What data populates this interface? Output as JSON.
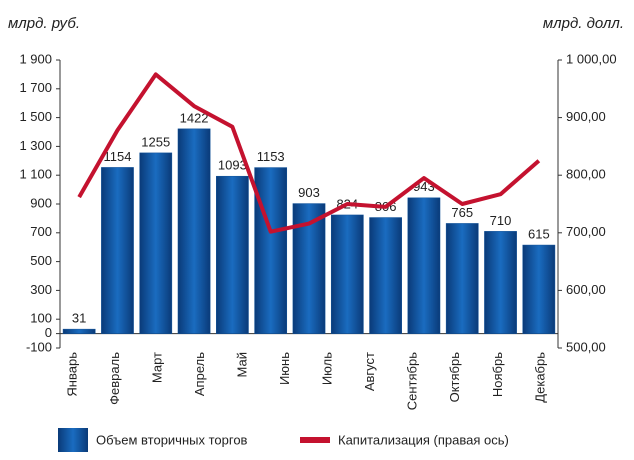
{
  "chart_data": {
    "type": "bar_line",
    "left_unit": "млрд. руб.",
    "right_unit": "млрд. долл.",
    "categories": [
      "Январь",
      "Февраль",
      "Март",
      "Апрель",
      "Май",
      "Июнь",
      null,
      "Июль",
      "Август",
      "Сентябрь",
      "Октябрь",
      "Ноябрь",
      "Декабрь"
    ],
    "series": [
      {
        "name": "Объем вторичных торгов",
        "type": "bar",
        "color": "#0d4f97",
        "values": [
          31,
          1154,
          1255,
          1422,
          1093,
          1153,
          903,
          824,
          806,
          943,
          765,
          710,
          615
        ]
      },
      {
        "name": "Капитализация (правая ось)",
        "type": "line",
        "axis": "y2",
        "color": "#c4122f",
        "values": [
          762,
          878,
          975,
          920,
          884,
          702,
          716,
          750,
          745,
          795,
          750,
          767,
          825
        ]
      }
    ],
    "ylim": [
      -100,
      1900
    ],
    "yticks": [
      -100,
      0,
      100,
      300,
      500,
      700,
      900,
      {
        "value": 1100,
        "label": "1 100"
      },
      {
        "value": 1300,
        "label": "1 300"
      },
      {
        "value": 1500,
        "label": "1 500"
      },
      {
        "value": 1700,
        "label": "1 700"
      },
      {
        "value": 1900,
        "label": "1 900"
      }
    ],
    "y2lim": [
      500,
      1000
    ],
    "y2ticks": [
      {
        "value": 500,
        "label": "500,00"
      },
      {
        "value": 600,
        "label": "600,00"
      },
      {
        "value": 700,
        "label": "700,00"
      },
      {
        "value": 800,
        "label": "800,00"
      },
      {
        "value": 900,
        "label": "900,00"
      },
      {
        "value": 1000,
        "label": "1 000,00"
      }
    ]
  }
}
